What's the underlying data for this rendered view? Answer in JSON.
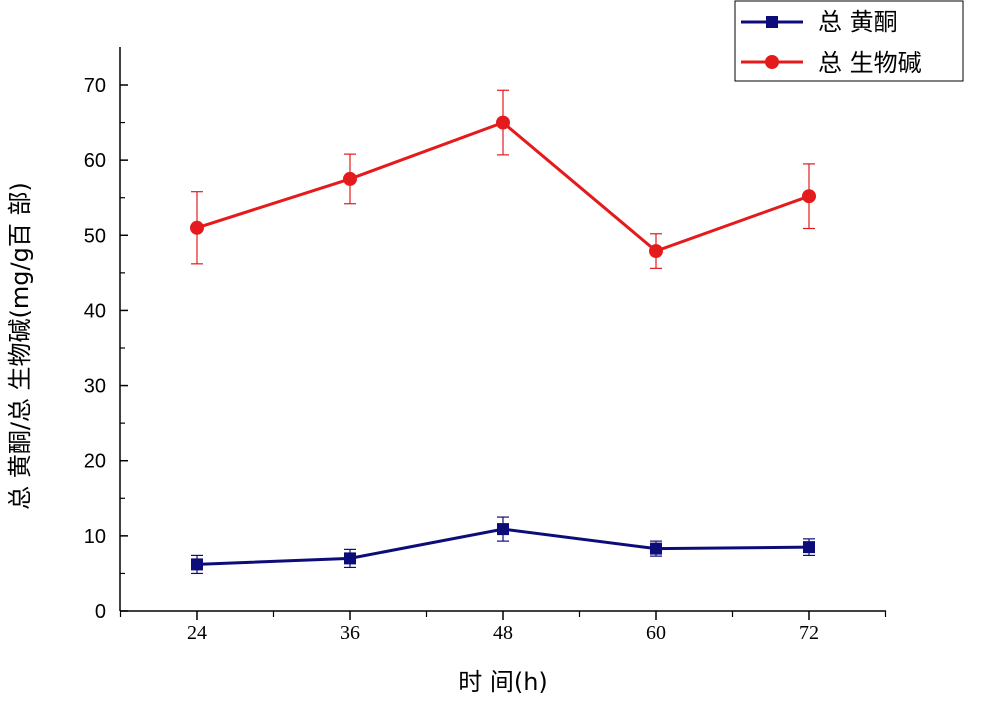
{
  "chart_data": {
    "type": "line",
    "xlabel": "时 间(h)",
    "ylabel": "总 黄酮/总 生物碱(mg/g百 部)",
    "categories": [
      "24",
      "36",
      "48",
      "60",
      "72"
    ],
    "x": [
      24,
      36,
      48,
      60,
      72
    ],
    "ylim": [
      0,
      70
    ],
    "yticks": [
      0,
      10,
      20,
      30,
      40,
      50,
      60,
      70
    ],
    "grid": false,
    "legend_position": "top-right",
    "series": [
      {
        "name": "总 黄酮",
        "color": "#0d0d7a",
        "marker": "square",
        "values": [
          6.2,
          7.0,
          10.9,
          8.3,
          8.5
        ],
        "error": [
          1.2,
          1.2,
          1.6,
          1.0,
          1.1
        ]
      },
      {
        "name": "总 生物碱",
        "color": "#e41a1c",
        "marker": "circle",
        "values": [
          51.0,
          57.5,
          65.0,
          47.9,
          55.2
        ],
        "error": [
          4.8,
          3.3,
          4.3,
          2.3,
          4.3
        ]
      }
    ]
  }
}
